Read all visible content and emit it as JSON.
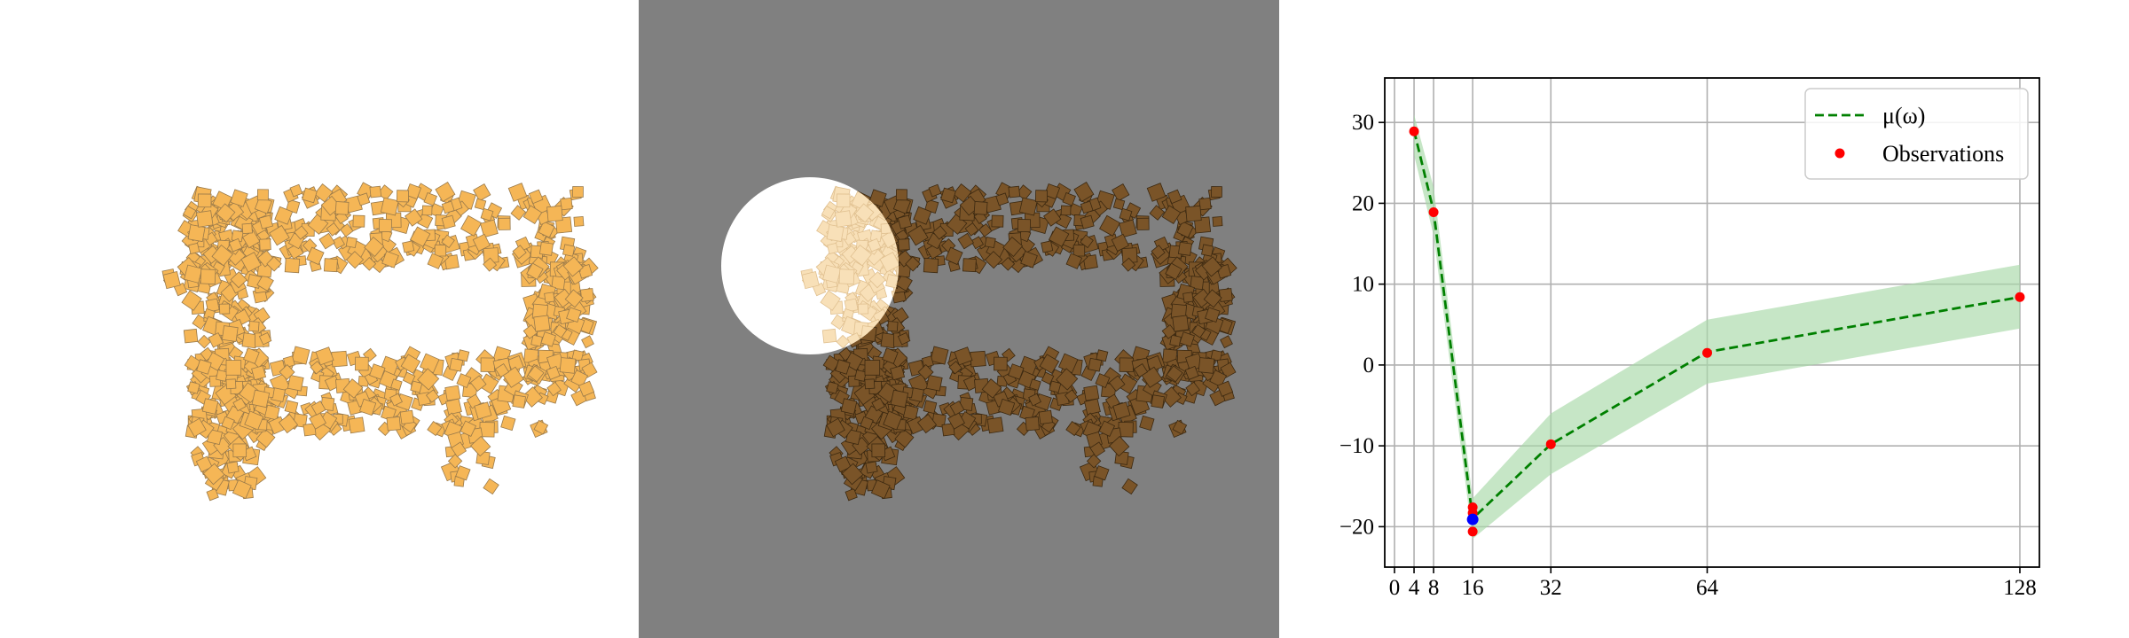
{
  "panels": {
    "particles_plain": {
      "particle_color": "#f5b656",
      "background": "#ffffff"
    },
    "particles_highlight": {
      "particle_color": "#7a5428",
      "background": "#808080",
      "highlight_color": "#ffffff"
    }
  },
  "chart_data": {
    "type": "line",
    "title": "",
    "xlabel": "",
    "ylabel": "",
    "xlim": [
      -2,
      132
    ],
    "ylim": [
      -25,
      35.5
    ],
    "xticks": [
      0,
      4,
      8,
      16,
      32,
      64,
      128
    ],
    "yticks": [
      -20,
      -10,
      0,
      10,
      20,
      30
    ],
    "grid": true,
    "legend_position": "top-right",
    "series": [
      {
        "name": "μ(ω)",
        "style": "dashed",
        "color": "#008000",
        "x": [
          4,
          8,
          16,
          32,
          64,
          128
        ],
        "y": [
          29.0,
          19.0,
          -19.0,
          -9.8,
          1.6,
          8.4
        ],
        "band_lower": [
          26.0,
          16.0,
          -21.5,
          -13.5,
          -2.3,
          4.5
        ],
        "band_upper": [
          31.0,
          22.0,
          -16.5,
          -6.0,
          5.6,
          12.4
        ],
        "band_color": "#a8d8a8"
      },
      {
        "name": "Observations",
        "style": "markers",
        "color": "#ff0000",
        "x": [
          4,
          8,
          16,
          16,
          16,
          32,
          64,
          128
        ],
        "y": [
          28.9,
          18.9,
          -17.6,
          -18.3,
          -20.6,
          -9.8,
          1.5,
          8.4
        ]
      }
    ],
    "highlight_point": {
      "x": 16,
      "y": -19.1,
      "color": "#0000ff"
    }
  }
}
